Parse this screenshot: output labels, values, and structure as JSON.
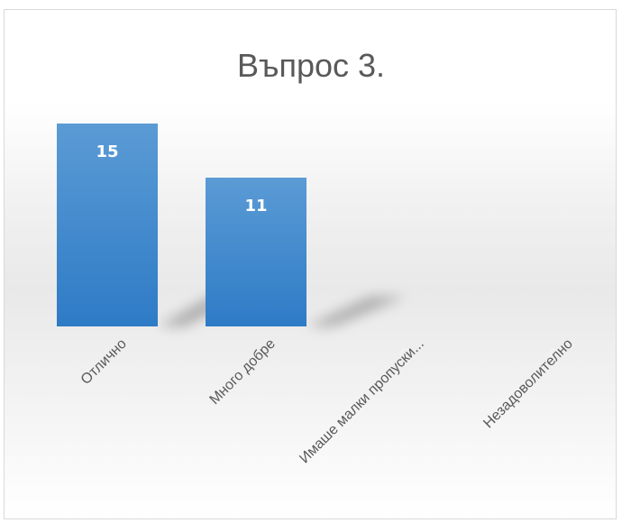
{
  "chart_data": {
    "type": "bar",
    "title": "Въпрос 3.",
    "categories": [
      "Отлично",
      "Много добре",
      "Имаше малки пропуски...",
      "Незадоволително"
    ],
    "values": [
      15,
      11,
      0,
      0
    ],
    "ylim": [
      0,
      15
    ],
    "grid": false,
    "legend": "none",
    "bar_color_top": "#5b9bd5",
    "bar_color_bottom": "#2e7bc6",
    "label_on_bar_color": "#ffffff",
    "label_zero_color": "#f2f2f2"
  }
}
